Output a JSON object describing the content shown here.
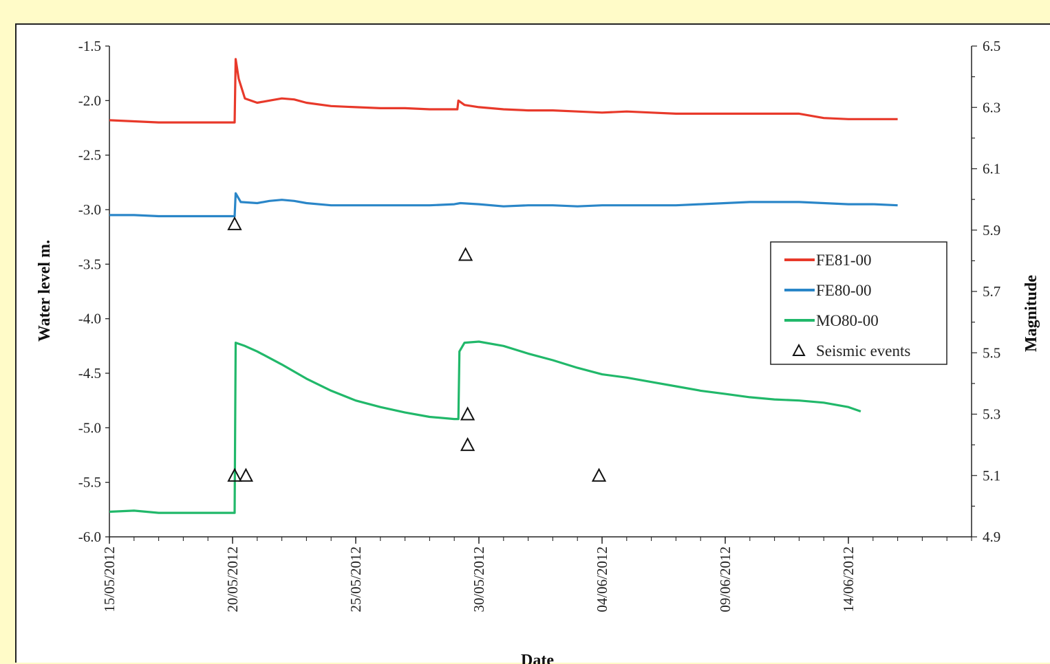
{
  "chart_data": {
    "type": "line",
    "xlabel": "Date",
    "ylabel": "Water level m.",
    "y2label": "Magnitude",
    "ylim": [
      -6.0,
      -1.5
    ],
    "y2lim": [
      4.9,
      6.5
    ],
    "xlim": [
      "15/05/2012",
      "19/06/2012"
    ],
    "x_tick_labels": [
      "15/05/2012",
      "20/05/2012",
      "25/05/2012",
      "30/05/2012",
      "04/06/2012",
      "09/06/2012",
      "14/06/2012"
    ],
    "y_tick_labels": [
      "-1.5",
      "-2.0",
      "-2.5",
      "-3.0",
      "-3.5",
      "-4.0",
      "-4.5",
      "-5.0",
      "-5.5",
      "-6.0"
    ],
    "y2_tick_labels": [
      "6.5",
      "6.3",
      "6.1",
      "5.9",
      "5.7",
      "5.5",
      "5.3",
      "5.1",
      "4.9"
    ],
    "grid": false,
    "legend_position": "right",
    "series": [
      {
        "name": "FE81-00",
        "color": "#e8392a",
        "axis": "left",
        "points": [
          [
            "15/05/2012 00:00",
            -2.18
          ],
          [
            "16/05/2012 00:00",
            -2.19
          ],
          [
            "17/05/2012 00:00",
            -2.2
          ],
          [
            "18/05/2012 00:00",
            -2.2
          ],
          [
            "19/05/2012 00:00",
            -2.2
          ],
          [
            "20/05/2012 00:00",
            -2.2
          ],
          [
            "20/05/2012 02:00",
            -2.2
          ],
          [
            "20/05/2012 03:00",
            -1.62
          ],
          [
            "20/05/2012 06:00",
            -1.8
          ],
          [
            "20/05/2012 12:00",
            -1.98
          ],
          [
            "21/05/2012 00:00",
            -2.02
          ],
          [
            "21/05/2012 12:00",
            -2.0
          ],
          [
            "22/05/2012 00:00",
            -1.98
          ],
          [
            "22/05/2012 12:00",
            -1.99
          ],
          [
            "23/05/2012 00:00",
            -2.02
          ],
          [
            "24/05/2012 00:00",
            -2.05
          ],
          [
            "25/05/2012 00:00",
            -2.06
          ],
          [
            "26/05/2012 00:00",
            -2.07
          ],
          [
            "27/05/2012 00:00",
            -2.07
          ],
          [
            "28/05/2012 00:00",
            -2.08
          ],
          [
            "29/05/2012 00:00",
            -2.08
          ],
          [
            "29/05/2012 03:00",
            -2.08
          ],
          [
            "29/05/2012 04:00",
            -2.0
          ],
          [
            "29/05/2012 10:00",
            -2.04
          ],
          [
            "30/05/2012 00:00",
            -2.06
          ],
          [
            "31/05/2012 00:00",
            -2.08
          ],
          [
            "01/06/2012 00:00",
            -2.09
          ],
          [
            "02/06/2012 00:00",
            -2.09
          ],
          [
            "03/06/2012 00:00",
            -2.1
          ],
          [
            "04/06/2012 00:00",
            -2.11
          ],
          [
            "05/06/2012 00:00",
            -2.1
          ],
          [
            "06/06/2012 00:00",
            -2.11
          ],
          [
            "07/06/2012 00:00",
            -2.12
          ],
          [
            "08/06/2012 00:00",
            -2.12
          ],
          [
            "09/06/2012 00:00",
            -2.12
          ],
          [
            "10/06/2012 00:00",
            -2.12
          ],
          [
            "11/06/2012 00:00",
            -2.12
          ],
          [
            "12/06/2012 00:00",
            -2.12
          ],
          [
            "13/06/2012 00:00",
            -2.16
          ],
          [
            "14/06/2012 00:00",
            -2.17
          ],
          [
            "15/06/2012 00:00",
            -2.17
          ],
          [
            "16/06/2012 00:00",
            -2.17
          ]
        ]
      },
      {
        "name": "FE80-00",
        "color": "#2a86c8",
        "axis": "left",
        "points": [
          [
            "15/05/2012 00:00",
            -3.05
          ],
          [
            "16/05/2012 00:00",
            -3.05
          ],
          [
            "17/05/2012 00:00",
            -3.06
          ],
          [
            "18/05/2012 00:00",
            -3.06
          ],
          [
            "19/05/2012 00:00",
            -3.06
          ],
          [
            "20/05/2012 00:00",
            -3.06
          ],
          [
            "20/05/2012 02:00",
            -3.06
          ],
          [
            "20/05/2012 03:00",
            -2.85
          ],
          [
            "20/05/2012 08:00",
            -2.93
          ],
          [
            "21/05/2012 00:00",
            -2.94
          ],
          [
            "21/05/2012 12:00",
            -2.92
          ],
          [
            "22/05/2012 00:00",
            -2.91
          ],
          [
            "22/05/2012 12:00",
            -2.92
          ],
          [
            "23/05/2012 00:00",
            -2.94
          ],
          [
            "24/05/2012 00:00",
            -2.96
          ],
          [
            "25/05/2012 00:00",
            -2.96
          ],
          [
            "26/05/2012 00:00",
            -2.96
          ],
          [
            "27/05/2012 00:00",
            -2.96
          ],
          [
            "28/05/2012 00:00",
            -2.96
          ],
          [
            "29/05/2012 00:00",
            -2.95
          ],
          [
            "29/05/2012 06:00",
            -2.94
          ],
          [
            "30/05/2012 00:00",
            -2.95
          ],
          [
            "31/05/2012 00:00",
            -2.97
          ],
          [
            "01/06/2012 00:00",
            -2.96
          ],
          [
            "02/06/2012 00:00",
            -2.96
          ],
          [
            "03/06/2012 00:00",
            -2.97
          ],
          [
            "04/06/2012 00:00",
            -2.96
          ],
          [
            "05/06/2012 00:00",
            -2.96
          ],
          [
            "06/06/2012 00:00",
            -2.96
          ],
          [
            "07/06/2012 00:00",
            -2.96
          ],
          [
            "08/06/2012 00:00",
            -2.95
          ],
          [
            "09/06/2012 00:00",
            -2.94
          ],
          [
            "10/06/2012 00:00",
            -2.93
          ],
          [
            "11/06/2012 00:00",
            -2.93
          ],
          [
            "12/06/2012 00:00",
            -2.93
          ],
          [
            "13/06/2012 00:00",
            -2.94
          ],
          [
            "14/06/2012 00:00",
            -2.95
          ],
          [
            "15/06/2012 00:00",
            -2.95
          ],
          [
            "16/06/2012 00:00",
            -2.96
          ]
        ]
      },
      {
        "name": "MO80-00",
        "color": "#21b86a",
        "axis": "left",
        "points": [
          [
            "15/05/2012 00:00",
            -5.77
          ],
          [
            "16/05/2012 00:00",
            -5.76
          ],
          [
            "17/05/2012 00:00",
            -5.78
          ],
          [
            "18/05/2012 00:00",
            -5.78
          ],
          [
            "19/05/2012 00:00",
            -5.78
          ],
          [
            "20/05/2012 00:00",
            -5.78
          ],
          [
            "20/05/2012 02:00",
            -5.78
          ],
          [
            "20/05/2012 03:00",
            -4.22
          ],
          [
            "20/05/2012 12:00",
            -4.25
          ],
          [
            "21/05/2012 00:00",
            -4.3
          ],
          [
            "22/05/2012 00:00",
            -4.42
          ],
          [
            "23/05/2012 00:00",
            -4.55
          ],
          [
            "24/05/2012 00:00",
            -4.66
          ],
          [
            "25/05/2012 00:00",
            -4.75
          ],
          [
            "26/05/2012 00:00",
            -4.81
          ],
          [
            "27/05/2012 00:00",
            -4.86
          ],
          [
            "28/05/2012 00:00",
            -4.9
          ],
          [
            "29/05/2012 00:00",
            -4.92
          ],
          [
            "29/05/2012 04:00",
            -4.92
          ],
          [
            "29/05/2012 05:00",
            -4.3
          ],
          [
            "29/05/2012 10:00",
            -4.22
          ],
          [
            "30/05/2012 00:00",
            -4.21
          ],
          [
            "31/05/2012 00:00",
            -4.25
          ],
          [
            "01/06/2012 00:00",
            -4.32
          ],
          [
            "02/06/2012 00:00",
            -4.38
          ],
          [
            "03/06/2012 00:00",
            -4.45
          ],
          [
            "04/06/2012 00:00",
            -4.51
          ],
          [
            "05/06/2012 00:00",
            -4.54
          ],
          [
            "06/06/2012 00:00",
            -4.58
          ],
          [
            "07/06/2012 00:00",
            -4.62
          ],
          [
            "08/06/2012 00:00",
            -4.66
          ],
          [
            "09/06/2012 00:00",
            -4.69
          ],
          [
            "10/06/2012 00:00",
            -4.72
          ],
          [
            "11/06/2012 00:00",
            -4.74
          ],
          [
            "12/06/2012 00:00",
            -4.75
          ],
          [
            "13/06/2012 00:00",
            -4.77
          ],
          [
            "14/06/2012 00:00",
            -4.81
          ],
          [
            "14/06/2012 12:00",
            -4.85
          ]
        ]
      },
      {
        "name": "Seismic events",
        "type": "scatter",
        "marker": "triangle-open",
        "color": "#111111",
        "axis": "right",
        "points": [
          [
            "20/05/2012 02:00",
            5.92
          ],
          [
            "20/05/2012 02:00",
            5.1
          ],
          [
            "20/05/2012 13:00",
            5.1
          ],
          [
            "29/05/2012 11:00",
            5.82
          ],
          [
            "29/05/2012 13:00",
            5.3
          ],
          [
            "29/05/2012 13:00",
            5.2
          ],
          [
            "03/06/2012 21:00",
            5.1
          ]
        ]
      }
    ]
  }
}
